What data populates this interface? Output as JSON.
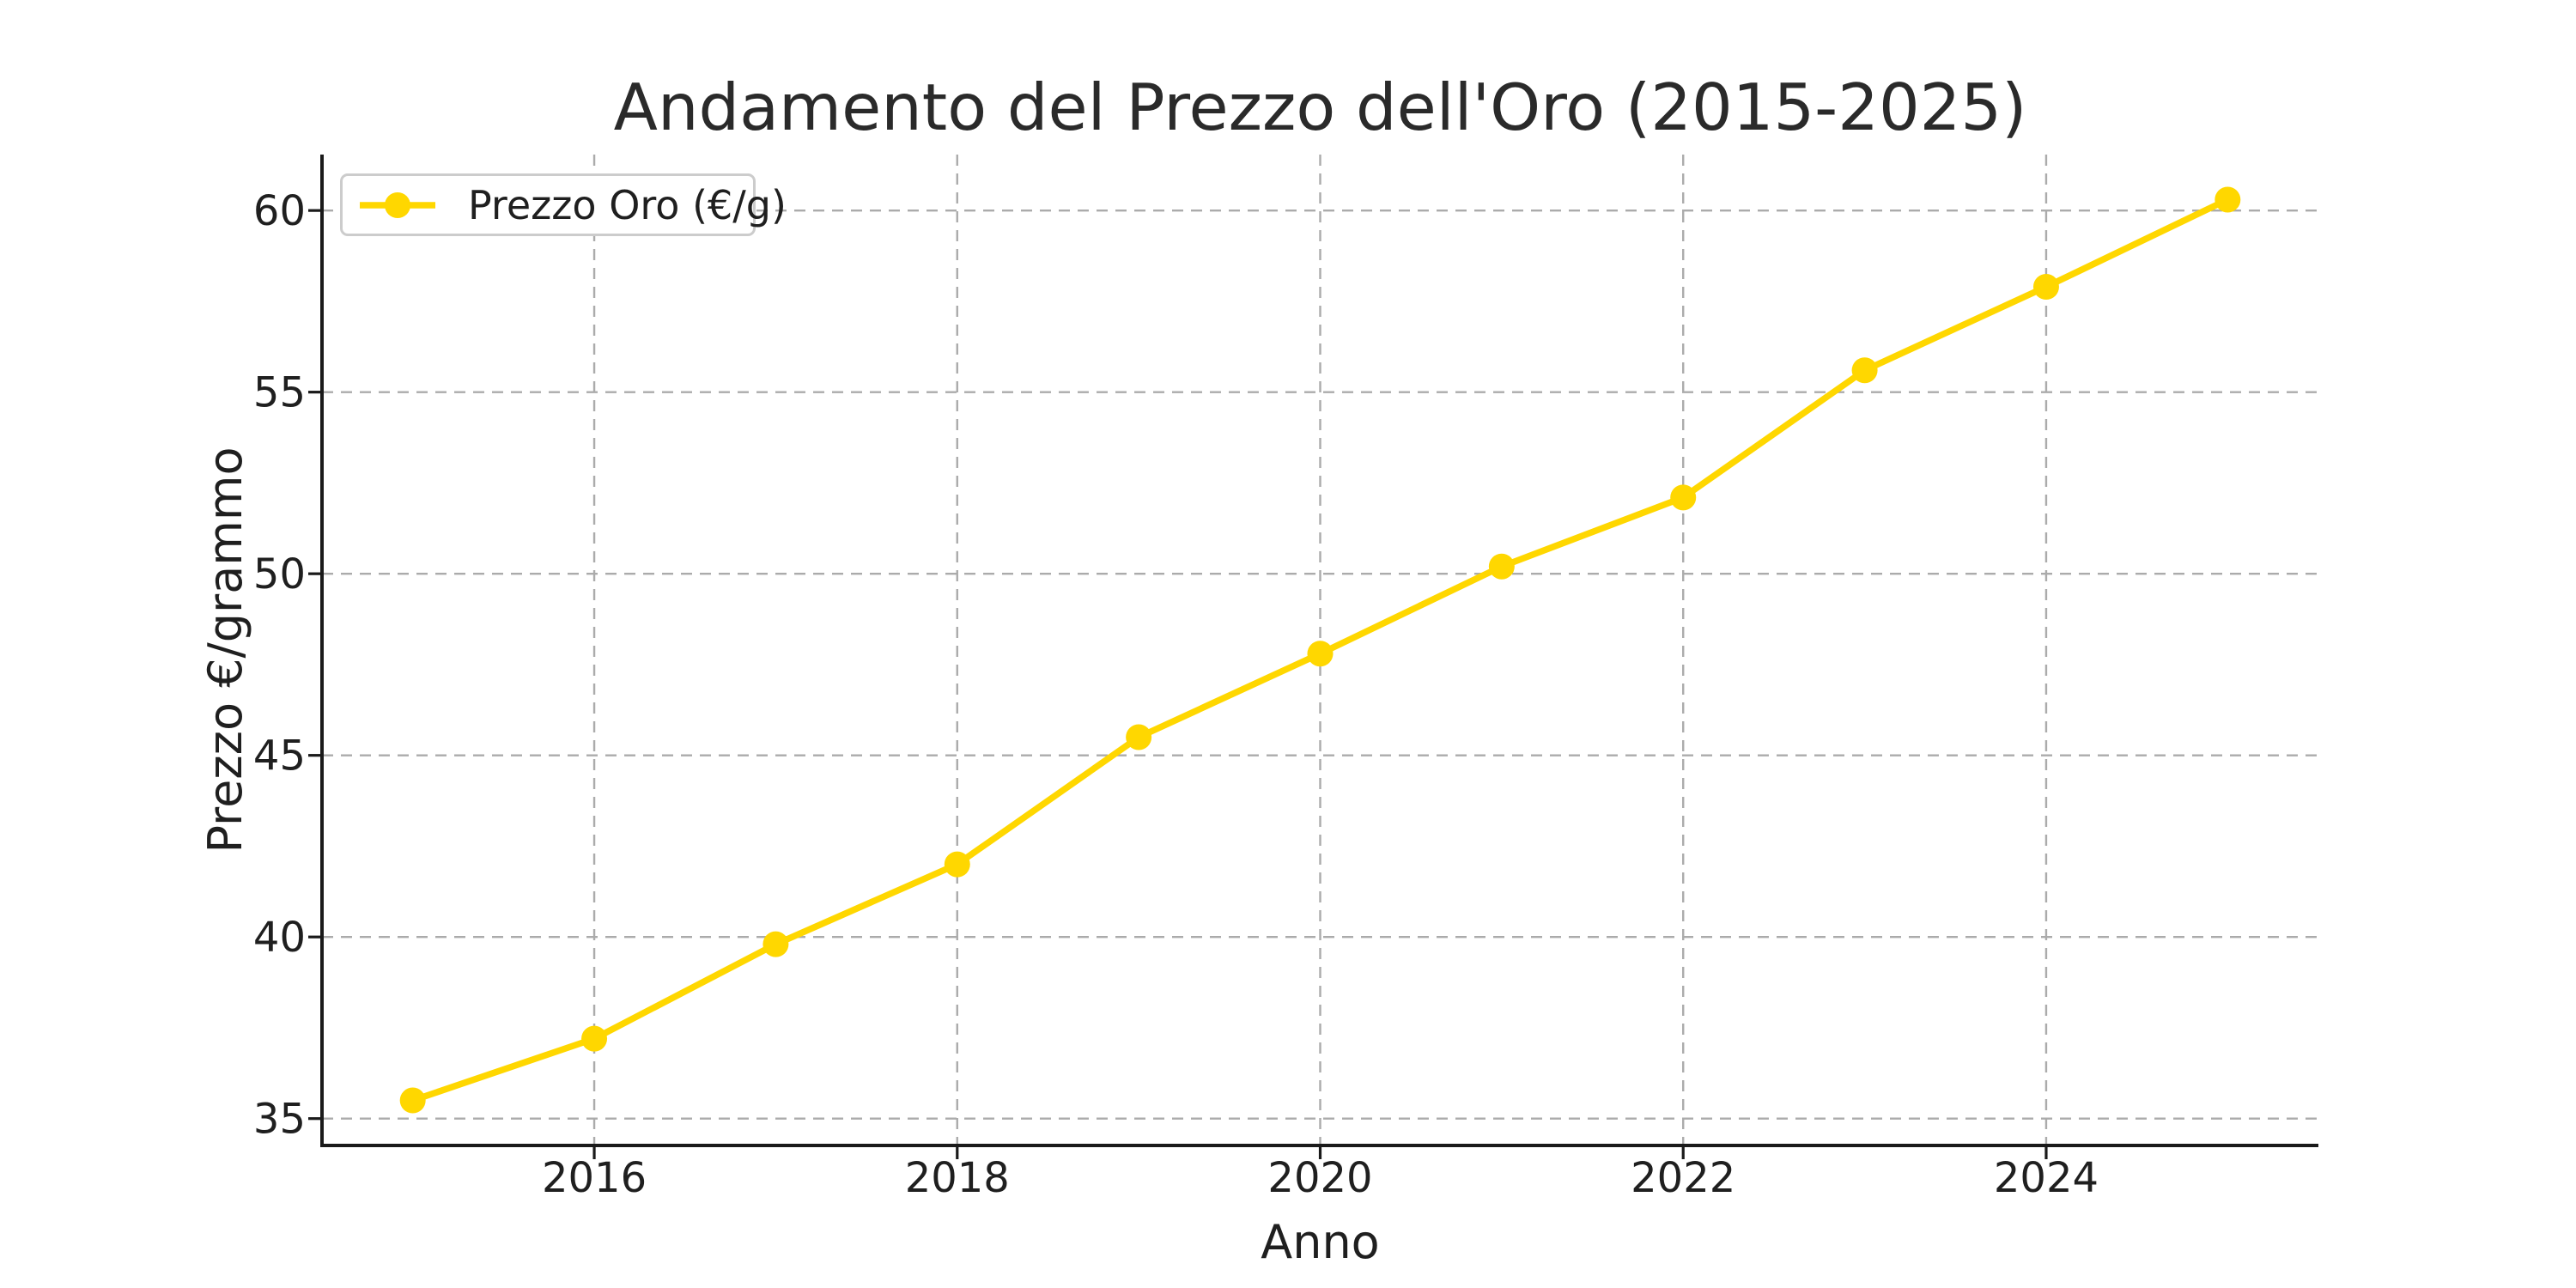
{
  "chart_data": {
    "type": "line",
    "title": "Andamento del Prezzo dell'Oro (2015-2025)",
    "xlabel": "Anno",
    "ylabel": "Prezzo €/grammo",
    "x": [
      2015,
      2016,
      2017,
      2018,
      2019,
      2020,
      2021,
      2022,
      2023,
      2024,
      2025
    ],
    "series": [
      {
        "name": "Prezzo Oro (€/g)",
        "color": "#FFD700",
        "marker": "circle",
        "values": [
          35.5,
          37.2,
          39.8,
          42.0,
          45.5,
          47.8,
          50.2,
          52.1,
          55.6,
          57.9,
          60.3
        ]
      }
    ],
    "xticks": [
      2016,
      2018,
      2020,
      2022,
      2024
    ],
    "yticks": [
      35,
      40,
      45,
      50,
      55,
      60
    ],
    "xlim": [
      2014.5,
      2025.5
    ],
    "ylim": [
      34.26,
      61.54
    ],
    "grid": true,
    "grid_style": "dashed",
    "legend": {
      "label": "Prezzo Oro (€/g)",
      "position": "upper-left"
    },
    "colors": {
      "line": "#FFD700",
      "grid": "#ababab",
      "text": "#1f1f1f",
      "spine": "#1a1a1a",
      "legend_border": "#cccccc",
      "background": "#ffffff"
    }
  }
}
